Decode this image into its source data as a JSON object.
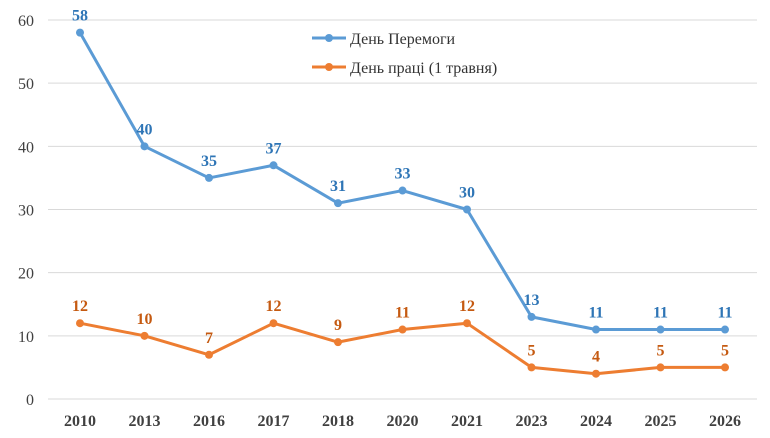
{
  "chart_data": {
    "type": "line",
    "title": "",
    "xlabel": "",
    "ylabel": "",
    "categories": [
      "2010",
      "2013",
      "2016",
      "2017",
      "2018",
      "2020",
      "2021",
      "2023",
      "2024",
      "2025",
      "2026"
    ],
    "ylim": [
      0,
      60
    ],
    "yticks": [
      0,
      10,
      20,
      30,
      40,
      50,
      60
    ],
    "grid": true,
    "legend_position": "top-center",
    "series": [
      {
        "name": "День Перемоги",
        "color": "#5b9bd5",
        "label_color": "#2e75b6",
        "values": [
          58,
          40,
          35,
          37,
          31,
          33,
          30,
          13,
          11,
          11,
          11
        ]
      },
      {
        "name": "День праці (1 травня)",
        "color": "#ed7d31",
        "label_color": "#c55a11",
        "values": [
          12,
          10,
          7,
          12,
          9,
          11,
          12,
          5,
          4,
          5,
          5
        ]
      }
    ]
  }
}
